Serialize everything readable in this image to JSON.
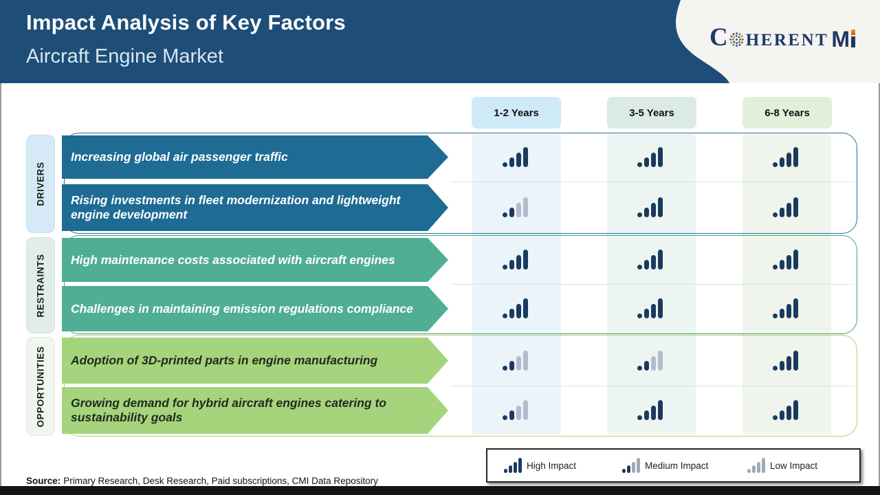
{
  "header": {
    "title": "Impact Analysis of Key Factors",
    "subtitle": "Aircraft Engine Market",
    "logo": {
      "part1": "C",
      "part2": "HERENT",
      "part3": "M"
    }
  },
  "columns": [
    {
      "label": "1-2 Years",
      "bg": "#cfeaf7"
    },
    {
      "label": "3-5 Years",
      "bg": "#dbeae5"
    },
    {
      "label": "6-8 Years",
      "bg": "#e2f0d9"
    }
  ],
  "col_band_colors": [
    "#eaf4f9",
    "#ecf5f1",
    "#eff5ec"
  ],
  "groups": [
    {
      "name": "DRIVERS",
      "label_bg": "#d5eaf6",
      "banner_bg": "#1e6b93",
      "banner_text": "#ffffff",
      "outline": "#2a6d94",
      "rows": [
        {
          "text": "Increasing global air passenger traffic",
          "impacts": [
            "high",
            "high",
            "high"
          ]
        },
        {
          "text": "Rising investments in fleet modernization and lightweight engine development",
          "impacts": [
            "medium",
            "high",
            "high"
          ]
        }
      ]
    },
    {
      "name": "RESTRAINTS",
      "label_bg": "#e3ede8",
      "banner_bg": "#4fae93",
      "banner_text": "#ffffff",
      "outline": "#3da08a",
      "rows": [
        {
          "text": "High maintenance costs associated with aircraft engines",
          "impacts": [
            "high",
            "high",
            "high"
          ]
        },
        {
          "text": "Challenges in maintaining emission regulations compliance",
          "impacts": [
            "high",
            "high",
            "high"
          ]
        }
      ]
    },
    {
      "name": "OPPORTUNITIES",
      "label_bg": "#eff5ef",
      "banner_bg": "#a6d47d",
      "banner_text": "#1f2a1f",
      "outline": "#b8cc6e",
      "rows": [
        {
          "text": "Adoption of 3D-printed parts in engine manufacturing",
          "impacts": [
            "medium",
            "medium",
            "high"
          ]
        },
        {
          "text": "Growing demand for hybrid aircraft engines catering to sustainability goals",
          "impacts": [
            "medium",
            "high",
            "high"
          ]
        }
      ]
    }
  ],
  "impact": {
    "dark": "#1b3a5e",
    "gray": "#b3bdc9",
    "legend_gray": "#9fabbb"
  },
  "legend": [
    {
      "level": "high",
      "label": "High Impact"
    },
    {
      "level": "medium",
      "label": "Medium Impact"
    },
    {
      "level": "low",
      "label": "Low Impact"
    }
  ],
  "source": {
    "label": "Source:",
    "text": "Primary Research, Desk Research, Paid subscriptions, CMI Data Repository"
  },
  "chart_data": {
    "type": "table",
    "title": "Impact Analysis of Key Factors",
    "subtitle": "Aircraft Engine Market",
    "columns": [
      "1-2 Years",
      "3-5 Years",
      "6-8 Years"
    ],
    "rows": [
      {
        "category": "Drivers",
        "factor": "Increasing global air passenger traffic",
        "impact": [
          "High",
          "High",
          "High"
        ]
      },
      {
        "category": "Drivers",
        "factor": "Rising investments in fleet modernization and lightweight engine development",
        "impact": [
          "Medium",
          "High",
          "High"
        ]
      },
      {
        "category": "Restraints",
        "factor": "High maintenance costs associated with aircraft engines",
        "impact": [
          "High",
          "High",
          "High"
        ]
      },
      {
        "category": "Restraints",
        "factor": "Challenges in maintaining emission regulations compliance",
        "impact": [
          "High",
          "High",
          "High"
        ]
      },
      {
        "category": "Opportunities",
        "factor": "Adoption of 3D-printed parts in engine manufacturing",
        "impact": [
          "Medium",
          "Medium",
          "High"
        ]
      },
      {
        "category": "Opportunities",
        "factor": "Growing demand for hybrid aircraft engines catering to sustainability goals",
        "impact": [
          "Medium",
          "High",
          "High"
        ]
      }
    ],
    "legend": [
      "High Impact",
      "Medium Impact",
      "Low Impact"
    ],
    "legend_position": "bottom-right"
  }
}
